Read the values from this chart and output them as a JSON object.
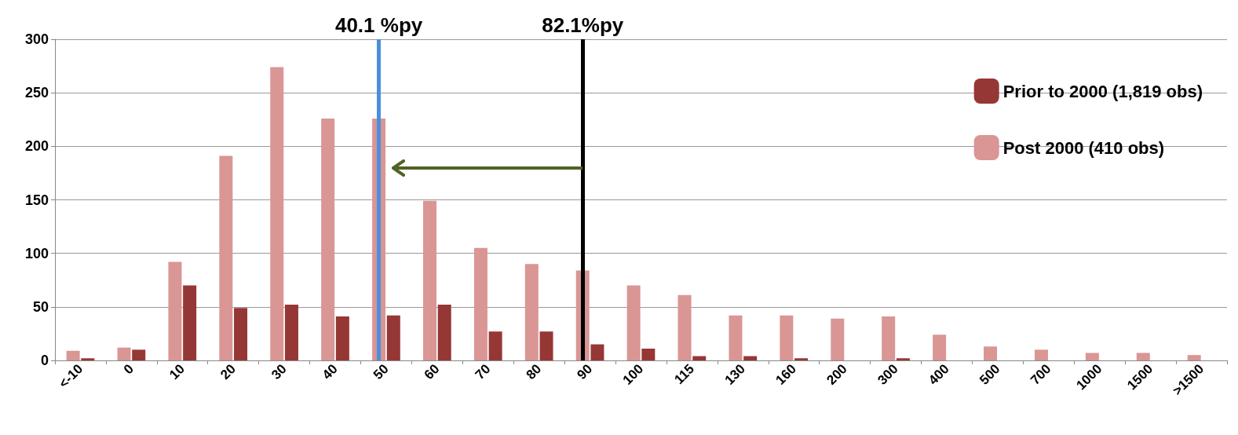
{
  "chart_data": {
    "type": "bar",
    "categories": [
      "<-10",
      "0",
      "10",
      "20",
      "30",
      "40",
      "50",
      "60",
      "70",
      "80",
      "90",
      "100",
      "115",
      "130",
      "160",
      "200",
      "300",
      "400",
      "500",
      "700",
      "1000",
      "1500",
      ">1500"
    ],
    "series": [
      {
        "name": "Post 2000 (410 obs)",
        "color": "#d99694",
        "values": [
          9,
          12,
          92,
          191,
          274,
          226,
          226,
          149,
          105,
          90,
          84,
          70,
          61,
          42,
          42,
          39,
          41,
          24,
          13,
          10,
          7,
          7,
          5
        ]
      },
      {
        "name": "Prior to 2000 (1,819 obs)",
        "color": "#953735",
        "values": [
          2,
          10,
          70,
          49,
          52,
          41,
          42,
          52,
          27,
          27,
          15,
          11,
          4,
          4,
          2,
          0,
          2,
          0,
          0,
          0,
          0,
          0,
          0
        ]
      }
    ],
    "ylim": [
      0,
      300
    ],
    "yticks": [
      0,
      50,
      100,
      150,
      200,
      250,
      300
    ],
    "grid": "y",
    "legend": "top right",
    "ref_lines": [
      {
        "axis": "x",
        "value": "50",
        "label": "40.1 %py",
        "color": "#4a8fdd"
      },
      {
        "axis": "x",
        "value": "90",
        "label": "82.1%py",
        "color": "#000000"
      }
    ]
  }
}
